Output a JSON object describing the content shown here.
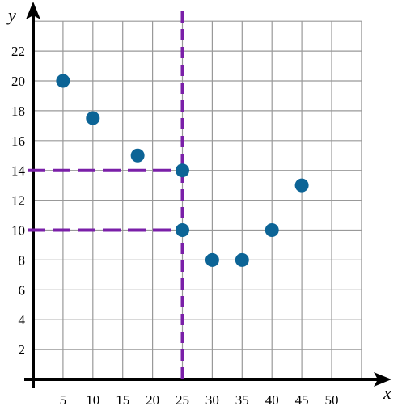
{
  "chart_data": {
    "type": "scatter",
    "xlabel": "x",
    "ylabel": "y",
    "xlim": [
      0,
      55
    ],
    "ylim": [
      0,
      24
    ],
    "x_ticks": [
      5,
      10,
      15,
      20,
      25,
      30,
      35,
      40,
      45,
      50
    ],
    "y_ticks": [
      2,
      4,
      6,
      8,
      10,
      12,
      14,
      16,
      18,
      20,
      22
    ],
    "grid": true,
    "grid_step_x": 5,
    "grid_step_y": 2,
    "points": [
      {
        "x": 5,
        "y": 20
      },
      {
        "x": 10,
        "y": 17.5
      },
      {
        "x": 17.5,
        "y": 15
      },
      {
        "x": 25,
        "y": 14
      },
      {
        "x": 25,
        "y": 10
      },
      {
        "x": 30,
        "y": 8
      },
      {
        "x": 35,
        "y": 8
      },
      {
        "x": 40,
        "y": 10
      },
      {
        "x": 45,
        "y": 13
      }
    ],
    "reference_lines": [
      {
        "orientation": "vertical",
        "x": 25
      },
      {
        "orientation": "horizontal",
        "y": 14,
        "x_end": 25
      },
      {
        "orientation": "horizontal",
        "y": 10,
        "x_end": 25
      }
    ],
    "colors": {
      "point": "#0c6496",
      "reference": "#7a1fa8",
      "grid": "#999999",
      "axis": "#000000"
    }
  }
}
